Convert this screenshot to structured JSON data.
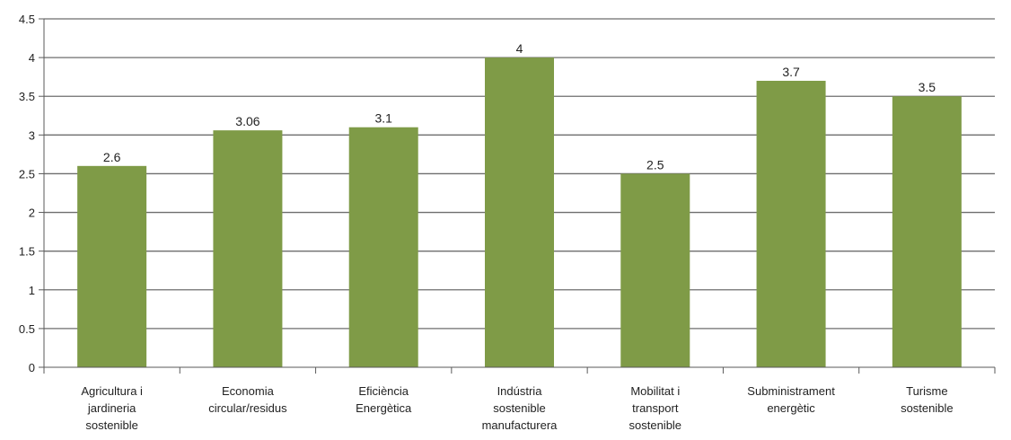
{
  "chart_data": {
    "type": "bar",
    "title": "",
    "xlabel": "",
    "ylabel": "",
    "categories": [
      [
        "Agricultura i",
        "jardineria",
        "sostenible"
      ],
      [
        "Economia",
        "circular/residus"
      ],
      [
        "Eficiència",
        "Energètica"
      ],
      [
        "Indústria",
        "sostenible",
        "manufacturera"
      ],
      [
        "Mobilitat i",
        "transport",
        "sostenible"
      ],
      [
        "Subministrament",
        "energètic"
      ],
      [
        "Turisme",
        "sostenible"
      ]
    ],
    "values": [
      2.6,
      3.06,
      3.1,
      4,
      2.5,
      3.7,
      3.5
    ],
    "data_labels": [
      "2.6",
      "3.06",
      "3.1",
      "4",
      "2.5",
      "3.7",
      "3.5"
    ],
    "ylim": [
      0,
      4.5
    ],
    "yticks": [
      0,
      0.5,
      1,
      1.5,
      2,
      2.5,
      3,
      3.5,
      4,
      4.5
    ],
    "ytick_labels": [
      "0",
      "0.5",
      "1",
      "1.5",
      "2",
      "2.5",
      "3",
      "3.5",
      "4",
      "4.5"
    ],
    "grid": true,
    "legend": "none",
    "colors": {
      "bar": "#7f9b47",
      "grid": "#6e6e6e",
      "axis": "#5a5a5a"
    }
  }
}
